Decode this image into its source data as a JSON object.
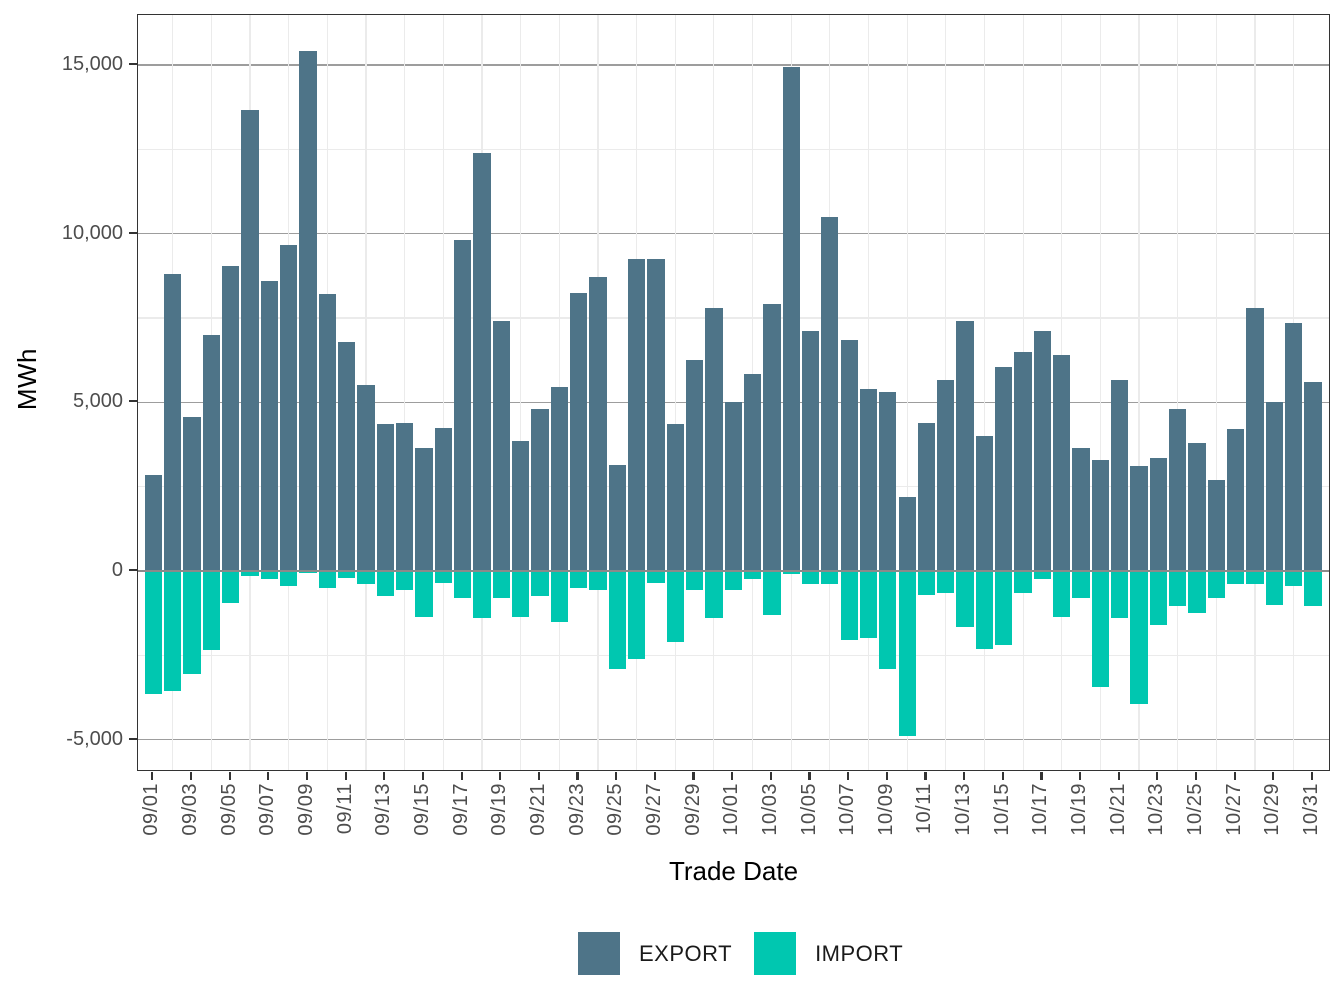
{
  "chart_data": {
    "type": "bar",
    "title": "",
    "xlabel": "Trade Date",
    "ylabel": "MWh",
    "grid": "on",
    "legend_position": "bottom",
    "ylim": [
      -5950,
      16480
    ],
    "y_major_ticks": [
      -5000,
      0,
      5000,
      10000,
      15000
    ],
    "y_tick_labels": [
      "-5,000",
      "0",
      "5,000",
      "10,000",
      "15,000"
    ],
    "y_minor_ticks": [
      -2500,
      2500,
      7500,
      12500
    ],
    "x_tick_labels": [
      "09/01",
      "09/03",
      "09/05",
      "09/07",
      "09/09",
      "09/11",
      "09/13",
      "09/15",
      "09/17",
      "09/19",
      "09/21",
      "09/23",
      "09/25",
      "09/27",
      "09/29",
      "10/01",
      "10/03",
      "10/05",
      "10/07",
      "10/09",
      "10/11",
      "10/13",
      "10/15",
      "10/17",
      "10/19",
      "10/21",
      "10/23",
      "10/25",
      "10/27",
      "10/29",
      "10/31"
    ],
    "categories": [
      "09/01",
      "09/02",
      "09/03",
      "09/04",
      "09/05",
      "09/06",
      "09/07",
      "09/08",
      "09/09",
      "09/10",
      "09/11",
      "09/12",
      "09/13",
      "09/14",
      "09/15",
      "09/16",
      "09/17",
      "09/18",
      "09/19",
      "09/20",
      "09/21",
      "09/22",
      "09/23",
      "09/24",
      "09/25",
      "09/26",
      "09/27",
      "09/28",
      "09/29",
      "09/30",
      "10/01",
      "10/02",
      "10/03",
      "10/04",
      "10/05",
      "10/06",
      "10/07",
      "10/08",
      "10/09",
      "10/10",
      "10/11",
      "10/12",
      "10/13",
      "10/14",
      "10/15",
      "10/16",
      "10/17",
      "10/18",
      "10/19",
      "10/20",
      "10/21",
      "10/22",
      "10/23",
      "10/24",
      "10/25",
      "10/26",
      "10/27",
      "10/28",
      "10/29",
      "10/30",
      "10/31"
    ],
    "series": [
      {
        "name": "EXPORT",
        "color": "#4e7488",
        "values": [
          2850,
          8800,
          4550,
          7000,
          9050,
          13650,
          8600,
          9650,
          15400,
          8200,
          6800,
          5500,
          4350,
          4400,
          3650,
          4250,
          9800,
          12400,
          7400,
          3850,
          4800,
          5450,
          8250,
          8700,
          3150,
          9250,
          9250,
          4350,
          6250,
          7800,
          5000,
          5850,
          7900,
          14950,
          7100,
          10500,
          6850,
          5400,
          5300,
          2200,
          4400,
          5650,
          7400,
          4000,
          6050,
          6500,
          7100,
          6400,
          3650,
          3300,
          5650,
          3100,
          3350,
          4800,
          3800,
          2700,
          4200,
          7800,
          5000,
          7350,
          5600
        ]
      },
      {
        "name": "IMPORT",
        "color": "#00c7b0",
        "values": [
          -3650,
          -3550,
          -3050,
          -2350,
          -950,
          -150,
          -250,
          -450,
          -50,
          -500,
          -200,
          -400,
          -750,
          -550,
          -1350,
          -350,
          -800,
          -1400,
          -800,
          -1350,
          -750,
          -1500,
          -500,
          -550,
          -2900,
          -2600,
          -350,
          -2100,
          -550,
          -1400,
          -550,
          -250,
          -1300,
          -100,
          -400,
          -400,
          -2050,
          -2000,
          -2900,
          -4900,
          -700,
          -650,
          -1650,
          -2300,
          -2200,
          -650,
          -250,
          -1350,
          -800,
          -3450,
          -1400,
          -3950,
          -1600,
          -1050,
          -1250,
          -800,
          -400,
          -400,
          -1000,
          -450,
          -1050
        ]
      }
    ]
  },
  "axes": {
    "y_title": "MWh",
    "x_title": "Trade Date"
  },
  "legend": {
    "export_label": "EXPORT",
    "import_label": "IMPORT"
  },
  "colors": {
    "export": "#4e7488",
    "import": "#00c7b0",
    "grid_major": "#9d9d9d",
    "grid_minor": "#ebebeb",
    "axis_text": "#4d4d4d",
    "zero_line": "#8a8a8a",
    "panel_border": "#333333"
  }
}
